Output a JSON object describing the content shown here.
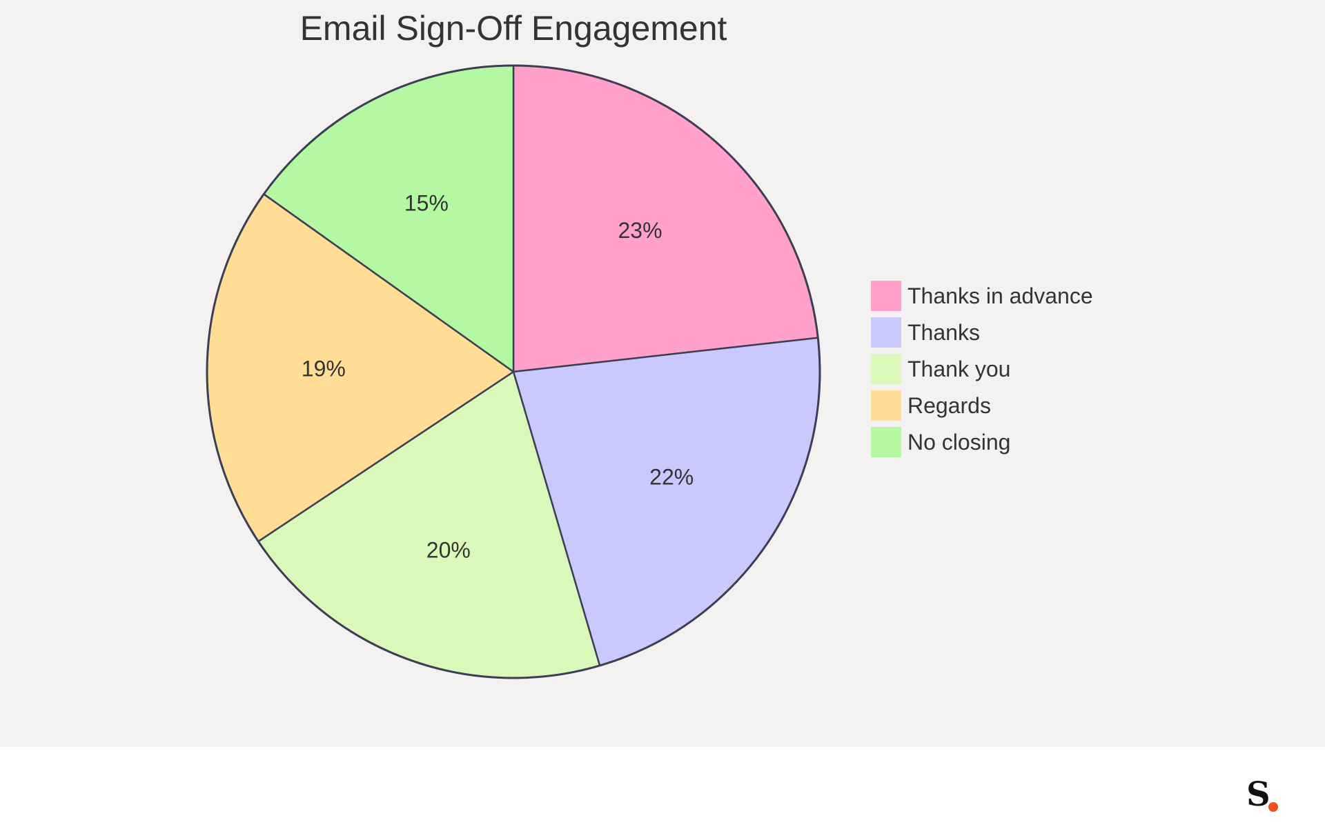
{
  "chart_data": {
    "type": "pie",
    "title": "Email Sign-Off Engagement",
    "categories": [
      "Thanks in advance",
      "Thanks",
      "Thank you",
      "Regards",
      "No closing"
    ],
    "values": [
      23,
      22,
      20,
      19,
      15
    ],
    "labels": [
      "23%",
      "22%",
      "20%",
      "19%",
      "15%"
    ],
    "colors": [
      "#ffa1cb",
      "#c9c9fe",
      "#dbf8bb",
      "#ffdd95",
      "#b4f9a1"
    ],
    "start_angle": "12 o'clock",
    "direction": "clockwise",
    "legend_position": "right"
  },
  "colors": {
    "background": "#f3f2f0",
    "outline": "#3d3d55",
    "text": "#333333",
    "brand_letter": "#111111",
    "brand_dot": "#f04e23"
  },
  "brand": {
    "letter": "S"
  }
}
